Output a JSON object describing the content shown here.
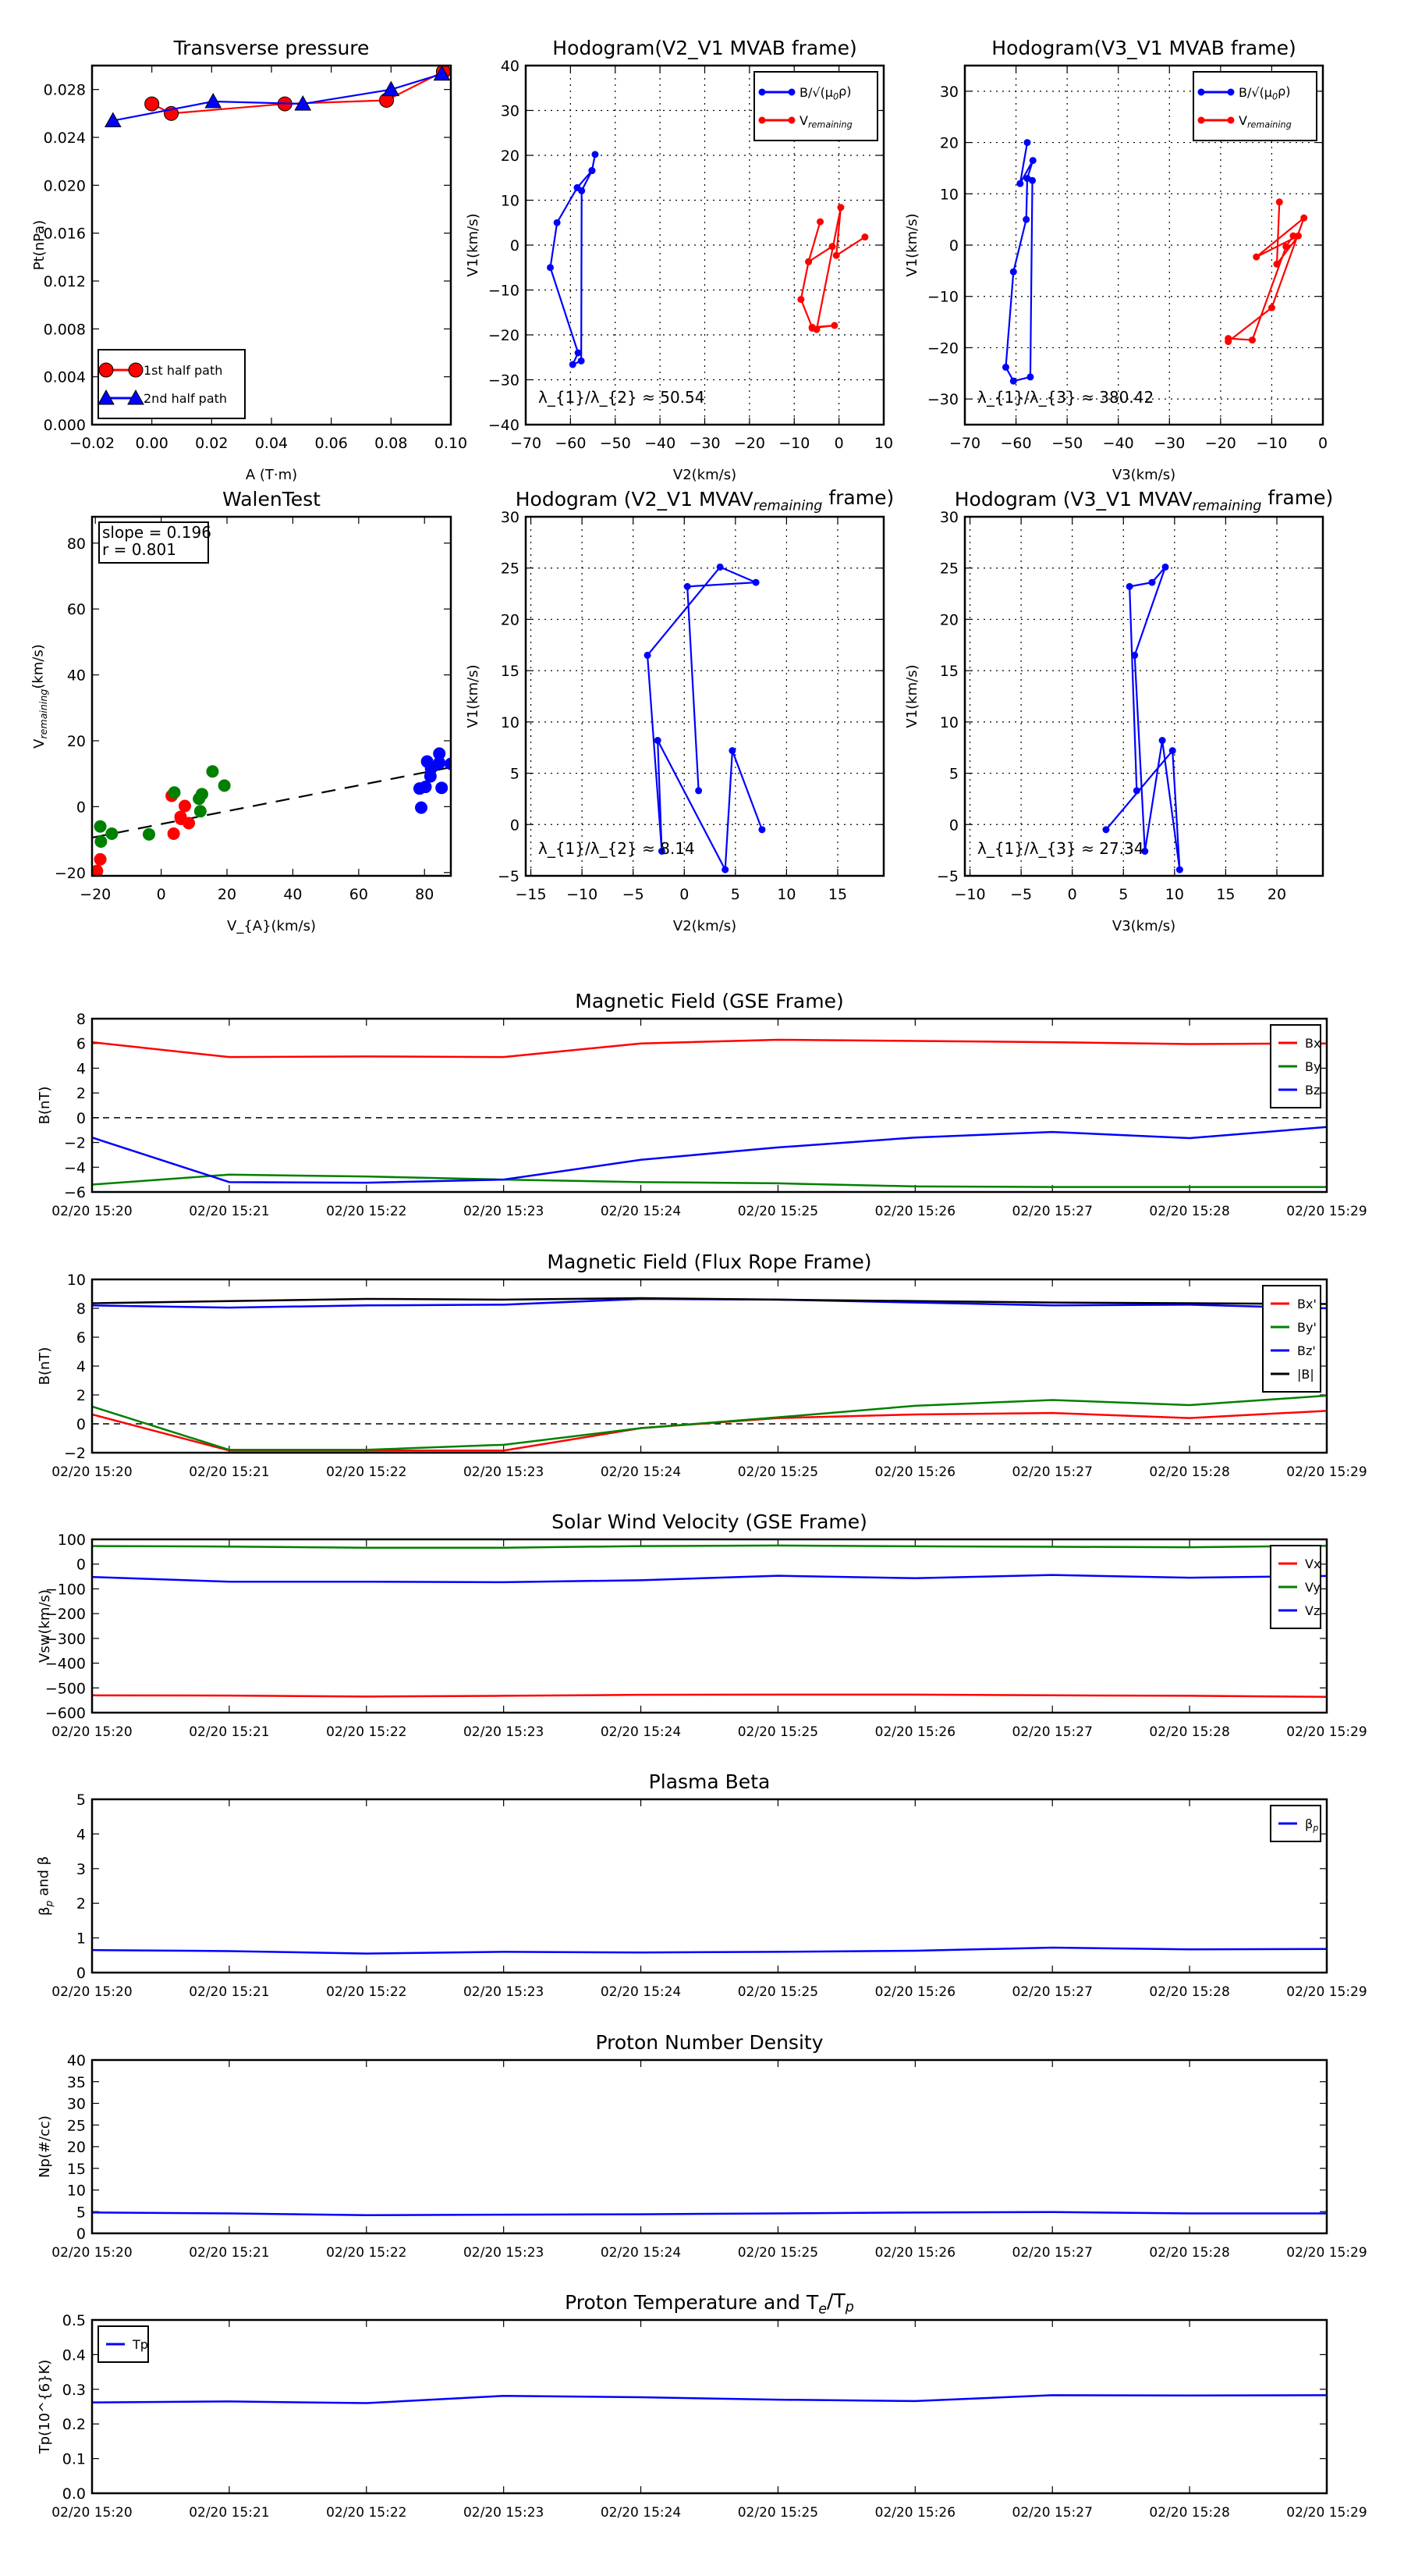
{
  "chart_data": [
    {
      "type": "line",
      "title": "Transverse pressure",
      "xlabel": "A (T·m)",
      "ylabel": "Pt(nPa)",
      "xlim": [
        -0.02,
        0.1
      ],
      "ylim": [
        0,
        0.03
      ],
      "xticks": [
        "-0.02",
        "0.00",
        "0.02",
        "0.04",
        "0.06",
        "0.08",
        "0.10"
      ],
      "yticks": [
        "0.000",
        "0.004",
        "0.008",
        "0.012",
        "0.016",
        "0.020",
        "0.024",
        "0.028"
      ],
      "grid": false,
      "legend": "lower left",
      "series": [
        {
          "name": "1st half path",
          "color": "#ff0000",
          "marker": "o",
          "linestyle": "solid",
          "x": [
            0.0,
            0.0065,
            0.0445,
            0.0785,
            0.0975
          ],
          "y": [
            0.0268,
            0.026,
            0.0268,
            0.0271,
            0.0295
          ]
        },
        {
          "name": "2nd half path",
          "color": "#0000ff",
          "marker": "^",
          "linestyle": "solid",
          "x": [
            -0.013,
            0.0205,
            0.0505,
            0.08,
            0.097
          ],
          "y": [
            0.0254,
            0.027,
            0.0268,
            0.028,
            0.0293
          ]
        }
      ]
    },
    {
      "type": "line",
      "title": "Hodogram(V2_V1 MVAB frame)",
      "xlabel": "V2(km/s)",
      "ylabel": "V1(km/s)",
      "xlim": [
        -70,
        10
      ],
      "ylim": [
        -40,
        40
      ],
      "xticks": [
        "-70",
        "-60",
        "-50",
        "-40",
        "-30",
        "-20",
        "-10",
        "0",
        "10"
      ],
      "yticks": [
        "-40",
        "-30",
        "-20",
        "-10",
        "0",
        "10",
        "20",
        "30",
        "40"
      ],
      "grid": true,
      "legend": "upper right",
      "series": [
        {
          "name": "B/√(μ_{0}ρ)",
          "color": "#0000ff",
          "marker": ".",
          "linestyle": "solid",
          "x": [
            -54.5,
            -55.2,
            -57.5,
            -57.6,
            -59.5,
            -58.3,
            -64.5,
            -63.0,
            -58.5,
            -55.2
          ],
          "y": [
            20.2,
            16.6,
            12.1,
            -25.8,
            -26.6,
            -24.0,
            -5.0,
            5.0,
            12.8,
            16.6
          ]
        },
        {
          "name": "V_{remaining}",
          "color": "#ff0000",
          "marker": ".",
          "linestyle": "solid",
          "x": [
            5.8,
            -0.6,
            0.4,
            -5.0,
            -6.0,
            -1.0,
            -6.0,
            -8.5,
            -6.8,
            -4.2,
            -6.8,
            -1.5
          ],
          "y": [
            1.8,
            -2.3,
            8.4,
            -18.8,
            -18.5,
            -17.9,
            -18.3,
            -12.1,
            -3.7,
            5.2,
            -3.7,
            -0.3
          ]
        }
      ],
      "annotation": "λ_{1}/λ_{2} ≈ 50.54"
    },
    {
      "type": "line",
      "title": "Hodogram(V3_V1 MVAB frame)",
      "xlabel": "V3(km/s)",
      "ylabel": "V1(km/s)",
      "xlim": [
        -70,
        0
      ],
      "ylim": [
        -35,
        35
      ],
      "xticks": [
        "-70",
        "-60",
        "-50",
        "-40",
        "-30",
        "-20",
        "-10",
        "0"
      ],
      "yticks": [
        "-30",
        "-20",
        "-10",
        "0",
        "10",
        "20",
        "30"
      ],
      "grid": true,
      "legend": "upper right",
      "series": [
        {
          "name": "B/√(μ_{0}ρ)",
          "color": "#0000ff",
          "marker": ".",
          "linestyle": "solid",
          "x": [
            -57.8,
            -59.2,
            -56.7,
            -57.8,
            -58.0,
            -60.5,
            -62.0,
            -60.5,
            -57.2,
            -56.8
          ],
          "y": [
            20.0,
            12.0,
            16.5,
            13.0,
            5.0,
            -5.2,
            -23.8,
            -26.5,
            -25.7,
            12.6
          ]
        },
        {
          "name": "V_{remaining}",
          "color": "#ff0000",
          "marker": ".",
          "linestyle": "solid",
          "x": [
            -8.5,
            -9.0,
            -4.8,
            -13.0,
            -3.7,
            -10.0,
            -18.5,
            -18.5,
            -13.8,
            -7.2,
            -5.8
          ],
          "y": [
            8.4,
            -3.7,
            1.8,
            -2.3,
            5.3,
            -12.2,
            -18.8,
            -18.2,
            -18.5,
            -0.3,
            1.8
          ]
        }
      ],
      "annotation": "λ_{1}/λ_{3} ≈ 380.42"
    },
    {
      "type": "scatter",
      "title": "WalenTest",
      "xlabel": "V_{A}(km/s)",
      "ylabel": "V_{remaining}(km/s)",
      "xlim": [
        -21,
        88
      ],
      "ylim": [
        -21,
        88
      ],
      "xticks": [
        "-20",
        "0",
        "20",
        "40",
        "60",
        "80"
      ],
      "yticks": [
        "-20",
        "0",
        "20",
        "40",
        "60",
        "80"
      ],
      "grid": false,
      "legend": "none",
      "series": [
        {
          "name": "fit",
          "color": "#000000",
          "marker": "none",
          "linestyle": "dashed",
          "x": [
            -21,
            88
          ],
          "y": [
            -9.4,
            11.95
          ]
        },
        {
          "name": "red",
          "color": "#ff0000",
          "marker": "O",
          "linestyle": "none",
          "x": [
            -19.8,
            -19.5,
            -18.5,
            3.2,
            7.2,
            5.9,
            6.0,
            8.4,
            3.8
          ],
          "y": [
            -21.0,
            -19.5,
            -16.0,
            3.3,
            0.2,
            -3.1,
            -3.7,
            -5.0,
            -8.2
          ]
        },
        {
          "name": "green",
          "color": "#008000",
          "marker": "O",
          "linestyle": "none",
          "x": [
            -18.5,
            -18.3,
            -15.0,
            -3.7,
            4.0,
            11.5,
            12.4,
            11.9,
            15.6,
            19.2
          ],
          "y": [
            -6.0,
            -10.6,
            -8.2,
            -8.4,
            4.3,
            2.4,
            3.8,
            -1.4,
            10.7,
            6.4
          ]
        },
        {
          "name": "blue",
          "color": "#0000ff",
          "marker": "O",
          "linestyle": "none",
          "x": [
            78.5,
            79.0,
            80.3,
            80.8,
            82.0,
            81.8,
            84.5,
            84.5,
            85.2,
            88.0
          ],
          "y": [
            5.5,
            -0.3,
            6.0,
            13.7,
            11.6,
            9.2,
            16.1,
            13.3,
            5.7,
            13.0
          ]
        }
      ],
      "textbox": [
        "slope = 0.196",
        "r = 0.801"
      ]
    },
    {
      "type": "line",
      "title": "Hodogram (V2_V1 MVAV_{remaining} frame)",
      "xlabel": "V2(km/s)",
      "ylabel": "V1(km/s)",
      "xlim": [
        -15.5,
        19.5
      ],
      "ylim": [
        -5,
        30
      ],
      "xticks": [
        "-15",
        "-10",
        "-5",
        "0",
        "5",
        "10",
        "15"
      ],
      "yticks": [
        "-5",
        "0",
        "5",
        "10",
        "15",
        "20",
        "25",
        "30"
      ],
      "grid": true,
      "legend": "none",
      "series": [
        {
          "name": "hodogram",
          "color": "#0000ff",
          "marker": ".",
          "linestyle": "solid",
          "x": [
            1.4,
            0.3,
            7.0,
            3.5,
            -3.6,
            -2.2,
            -2.6,
            4.0,
            4.7,
            7.6
          ],
          "y": [
            3.3,
            23.2,
            23.6,
            25.1,
            16.5,
            -2.6,
            8.2,
            -4.4,
            7.2,
            -0.5
          ]
        }
      ],
      "annotation": "λ_{1}/λ_{2} ≈ 8.14"
    },
    {
      "type": "line",
      "title": "Hodogram (V3_V1 MVAV_{remaining} frame)",
      "xlabel": "V3(km/s)",
      "ylabel": "V1(km/s)",
      "xlim": [
        -10.5,
        24.5
      ],
      "ylim": [
        -5,
        30
      ],
      "xticks": [
        "-10",
        "-5",
        "0",
        "5",
        "10",
        "15",
        "20"
      ],
      "yticks": [
        "-5",
        "0",
        "5",
        "10",
        "15",
        "20",
        "25",
        "30"
      ],
      "grid": true,
      "legend": "none",
      "series": [
        {
          "name": "hodogram",
          "color": "#0000ff",
          "marker": ".",
          "linestyle": "solid",
          "x": [
            6.3,
            5.6,
            7.8,
            9.1,
            6.1,
            7.1,
            8.8,
            10.5,
            9.8,
            3.3
          ],
          "y": [
            3.3,
            23.2,
            23.6,
            25.1,
            16.5,
            -2.6,
            8.2,
            -4.4,
            7.2,
            -0.5
          ]
        }
      ],
      "annotation": "λ_{1}/λ_{3} ≈ 27.34"
    },
    {
      "type": "line",
      "title": "Magnetic Field (GSE Frame)",
      "xlabel": "",
      "ylabel": "B(nT)",
      "categories": [
        "02/20 15:20",
        "02/20 15:21",
        "02/20 15:22",
        "02/20 15:23",
        "02/20 15:24",
        "02/20 15:25",
        "02/20 15:26",
        "02/20 15:27",
        "02/20 15:28",
        "02/20 15:29"
      ],
      "ylim": [
        -6,
        8
      ],
      "yticks": [
        "-6",
        "-4",
        "-2",
        "0",
        "2",
        "4",
        "6",
        "8"
      ],
      "hline": 0,
      "legend": "upper right",
      "series": [
        {
          "name": "Bx",
          "color": "#ff0000",
          "y": [
            6.1,
            4.9,
            4.95,
            4.9,
            6.0,
            6.3,
            6.2,
            6.1,
            5.95,
            6.0
          ]
        },
        {
          "name": "By",
          "color": "#008000",
          "y": [
            -5.4,
            -4.6,
            -4.75,
            -5.0,
            -5.2,
            -5.3,
            -5.55,
            -5.6,
            -5.6,
            -5.6
          ]
        },
        {
          "name": "Bz",
          "color": "#0000ff",
          "y": [
            -1.6,
            -5.2,
            -5.25,
            -5.0,
            -3.4,
            -2.4,
            -1.6,
            -1.15,
            -1.65,
            -0.75
          ]
        }
      ]
    },
    {
      "type": "line",
      "title": "Magnetic Field (Flux Rope Frame)",
      "xlabel": "",
      "ylabel": "B(nT)",
      "categories": [
        "02/20 15:20",
        "02/20 15:21",
        "02/20 15:22",
        "02/20 15:23",
        "02/20 15:24",
        "02/20 15:25",
        "02/20 15:26",
        "02/20 15:27",
        "02/20 15:28",
        "02/20 15:29"
      ],
      "ylim": [
        -2,
        10
      ],
      "yticks": [
        "-2",
        "0",
        "2",
        "4",
        "6",
        "8",
        "10"
      ],
      "hline": 0,
      "legend": "upper right",
      "series": [
        {
          "name": "Bx'",
          "color": "#ff0000",
          "y": [
            0.65,
            -1.85,
            -1.85,
            -1.85,
            -0.3,
            0.4,
            0.65,
            0.75,
            0.4,
            0.9
          ]
        },
        {
          "name": "By'",
          "color": "#008000",
          "y": [
            1.2,
            -1.8,
            -1.8,
            -1.45,
            -0.3,
            0.45,
            1.25,
            1.65,
            1.3,
            1.95
          ]
        },
        {
          "name": "Bz'",
          "color": "#0000ff",
          "y": [
            8.2,
            8.05,
            8.2,
            8.25,
            8.65,
            8.6,
            8.4,
            8.2,
            8.25,
            8.0
          ]
        },
        {
          "name": "|B|",
          "color": "#000000",
          "y": [
            8.35,
            8.5,
            8.65,
            8.6,
            8.7,
            8.6,
            8.5,
            8.4,
            8.35,
            8.3
          ]
        }
      ]
    },
    {
      "type": "line",
      "title": "Solar Wind Velocity (GSE Frame)",
      "xlabel": "",
      "ylabel": "Vsw(km/s)",
      "categories": [
        "02/20 15:20",
        "02/20 15:21",
        "02/20 15:22",
        "02/20 15:23",
        "02/20 15:24",
        "02/20 15:25",
        "02/20 15:26",
        "02/20 15:27",
        "02/20 15:28",
        "02/20 15:29"
      ],
      "ylim": [
        -600,
        100
      ],
      "yticks": [
        "-600",
        "-500",
        "-400",
        "-300",
        "-200",
        "-100",
        "0",
        "100"
      ],
      "legend": "upper right",
      "series": [
        {
          "name": "Vx",
          "color": "#ff0000",
          "y": [
            -530,
            -531,
            -535,
            -532,
            -528,
            -527,
            -527,
            -530,
            -532,
            -536
          ]
        },
        {
          "name": "Vy",
          "color": "#008000",
          "y": [
            73,
            71,
            66,
            66,
            73,
            75,
            72,
            70,
            68,
            74
          ]
        },
        {
          "name": "Vz",
          "color": "#0000ff",
          "y": [
            -52,
            -71,
            -71,
            -73,
            -65,
            -47,
            -57,
            -44,
            -55,
            -48
          ]
        }
      ]
    },
    {
      "type": "line",
      "title": "Plasma Beta",
      "xlabel": "",
      "ylabel": "β_{p} and β",
      "categories": [
        "02/20 15:20",
        "02/20 15:21",
        "02/20 15:22",
        "02/20 15:23",
        "02/20 15:24",
        "02/20 15:25",
        "02/20 15:26",
        "02/20 15:27",
        "02/20 15:28",
        "02/20 15:29"
      ],
      "ylim": [
        0,
        5
      ],
      "yticks": [
        "0",
        "1",
        "2",
        "3",
        "4",
        "5"
      ],
      "legend": "upper right",
      "series": [
        {
          "name": "β_{p}",
          "color": "#0000ff",
          "y": [
            0.65,
            0.62,
            0.55,
            0.6,
            0.58,
            0.6,
            0.63,
            0.72,
            0.67,
            0.68
          ]
        }
      ]
    },
    {
      "type": "line",
      "title": "Proton Number Density",
      "xlabel": "",
      "ylabel": "Np(#/cc)",
      "categories": [
        "02/20 15:20",
        "02/20 15:21",
        "02/20 15:22",
        "02/20 15:23",
        "02/20 15:24",
        "02/20 15:25",
        "02/20 15:26",
        "02/20 15:27",
        "02/20 15:28",
        "02/20 15:29"
      ],
      "ylim": [
        0,
        40
      ],
      "yticks": [
        "0",
        "5",
        "10",
        "15",
        "20",
        "25",
        "30",
        "35",
        "40"
      ],
      "legend": "none",
      "series": [
        {
          "name": "Np",
          "color": "#0000ff",
          "y": [
            4.8,
            4.6,
            4.2,
            4.3,
            4.4,
            4.6,
            4.8,
            4.9,
            4.6,
            4.6
          ]
        }
      ]
    },
    {
      "type": "line",
      "title": "Proton Temperature and T_{e}/T_{p}",
      "xlabel": "",
      "ylabel": "Tp(10^{6}K)",
      "categories": [
        "02/20 15:20",
        "02/20 15:21",
        "02/20 15:22",
        "02/20 15:23",
        "02/20 15:24",
        "02/20 15:25",
        "02/20 15:26",
        "02/20 15:27",
        "02/20 15:28",
        "02/20 15:29"
      ],
      "ylim": [
        0,
        0.5
      ],
      "yticks": [
        "0.0",
        "0.1",
        "0.2",
        "0.3",
        "0.4",
        "0.5"
      ],
      "legend": "upper left",
      "series": [
        {
          "name": "Tp",
          "color": "#0000ff",
          "y": [
            0.262,
            0.265,
            0.26,
            0.281,
            0.277,
            0.27,
            0.266,
            0.283,
            0.282,
            0.283
          ]
        }
      ]
    }
  ]
}
